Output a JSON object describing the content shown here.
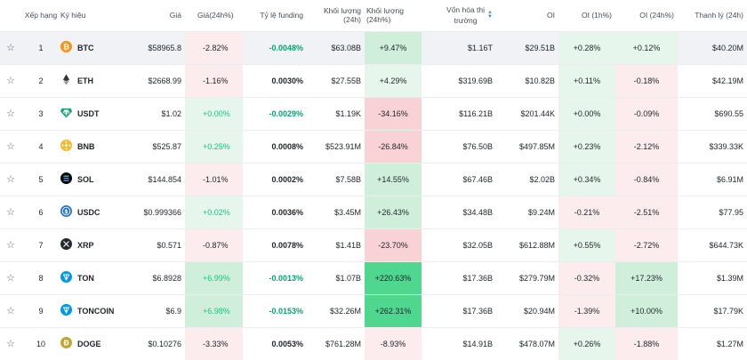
{
  "columns": {
    "rank": "Xếp hạng",
    "symbol": "Ký hiệu",
    "price": "Giá",
    "price_change": "Giá(24h%)",
    "funding": "Tỷ lệ funding",
    "volume": "Khối lượng (24h)",
    "volume_change": "Khối lượng (24h%)",
    "market_cap_line1": "Vốn hóa thị",
    "market_cap_line2": "trường",
    "oi": "OI",
    "oi_1h": "OI (1h%)",
    "oi_24h": "OI (24h%)",
    "liquidation": "Thanh lý (24h)"
  },
  "icons": {
    "favorite": "star-outline-icon",
    "sort": "sort-arrows-icon"
  },
  "colors": {
    "up": "#0ecb81",
    "up_strong": "#4fd68f",
    "down_bg": "#f8d2d5",
    "text": "#1e2329"
  },
  "rows": [
    {
      "rank": "1",
      "symbol": "BTC",
      "icon": "btc-icon",
      "price": "$58965.8",
      "price_change": "-2.82%",
      "funding": "-0.0048%",
      "volume": "$63.08B",
      "volume_change": "+9.47%",
      "market_cap": "$1.16T",
      "oi": "$29.51B",
      "oi_1h": "+0.28%",
      "oi_24h": "+0.12%",
      "liquidation": "$40.20M"
    },
    {
      "rank": "2",
      "symbol": "ETH",
      "icon": "eth-icon",
      "price": "$2668.99",
      "price_change": "-1.16%",
      "funding": "0.0030%",
      "volume": "$27.55B",
      "volume_change": "+4.29%",
      "market_cap": "$319.69B",
      "oi": "$10.82B",
      "oi_1h": "+0.11%",
      "oi_24h": "-0.18%",
      "liquidation": "$42.19M"
    },
    {
      "rank": "3",
      "symbol": "USDT",
      "icon": "usdt-icon",
      "price": "$1.02",
      "price_change": "+0.00%",
      "funding": "-0.0029%",
      "volume": "$1.19K",
      "volume_change": "-34.16%",
      "market_cap": "$116.21B",
      "oi": "$201.44K",
      "oi_1h": "+0.00%",
      "oi_24h": "-0.09%",
      "liquidation": "$690.55"
    },
    {
      "rank": "4",
      "symbol": "BNB",
      "icon": "bnb-icon",
      "price": "$525.87",
      "price_change": "+0.25%",
      "funding": "0.0008%",
      "volume": "$523.91M",
      "volume_change": "-26.84%",
      "market_cap": "$76.50B",
      "oi": "$497.85M",
      "oi_1h": "+0.23%",
      "oi_24h": "-2.12%",
      "liquidation": "$339.33K"
    },
    {
      "rank": "5",
      "symbol": "SOL",
      "icon": "sol-icon",
      "price": "$144.854",
      "price_change": "-1.01%",
      "funding": "0.0002%",
      "volume": "$7.58B",
      "volume_change": "+14.55%",
      "market_cap": "$67.46B",
      "oi": "$2.02B",
      "oi_1h": "+0.34%",
      "oi_24h": "-0.84%",
      "liquidation": "$6.91M"
    },
    {
      "rank": "6",
      "symbol": "USDC",
      "icon": "usdc-icon",
      "price": "$0.999366",
      "price_change": "+0.02%",
      "funding": "0.0036%",
      "volume": "$3.45M",
      "volume_change": "+26.43%",
      "market_cap": "$34.48B",
      "oi": "$9.24M",
      "oi_1h": "-0.21%",
      "oi_24h": "-2.51%",
      "liquidation": "$77.95"
    },
    {
      "rank": "7",
      "symbol": "XRP",
      "icon": "xrp-icon",
      "price": "$0.571",
      "price_change": "-0.87%",
      "funding": "0.0078%",
      "volume": "$1.41B",
      "volume_change": "-23.70%",
      "market_cap": "$32.05B",
      "oi": "$612.88M",
      "oi_1h": "+0.55%",
      "oi_24h": "-2.72%",
      "liquidation": "$644.73K"
    },
    {
      "rank": "8",
      "symbol": "TON",
      "icon": "ton-icon",
      "price": "$6.8928",
      "price_change": "+6.99%",
      "funding": "-0.0013%",
      "volume": "$1.07B",
      "volume_change": "+220.63%",
      "market_cap": "$17.36B",
      "oi": "$279.79M",
      "oi_1h": "-0.32%",
      "oi_24h": "+17.23%",
      "liquidation": "$1.39M"
    },
    {
      "rank": "9",
      "symbol": "TONCOIN",
      "icon": "toncoin-icon",
      "price": "$6.9",
      "price_change": "+6.98%",
      "funding": "-0.0153%",
      "volume": "$32.26M",
      "volume_change": "+262.31%",
      "market_cap": "$17.36B",
      "oi": "$20.94M",
      "oi_1h": "-1.39%",
      "oi_24h": "+10.00%",
      "liquidation": "$17.79K"
    },
    {
      "rank": "10",
      "symbol": "DOGE",
      "icon": "doge-icon",
      "price": "$0.10276",
      "price_change": "-3.33%",
      "funding": "0.0053%",
      "volume": "$761.28M",
      "volume_change": "-8.93%",
      "market_cap": "$14.91B",
      "oi": "$478.07M",
      "oi_1h": "+0.26%",
      "oi_24h": "-1.88%",
      "liquidation": "$1.27M"
    }
  ]
}
